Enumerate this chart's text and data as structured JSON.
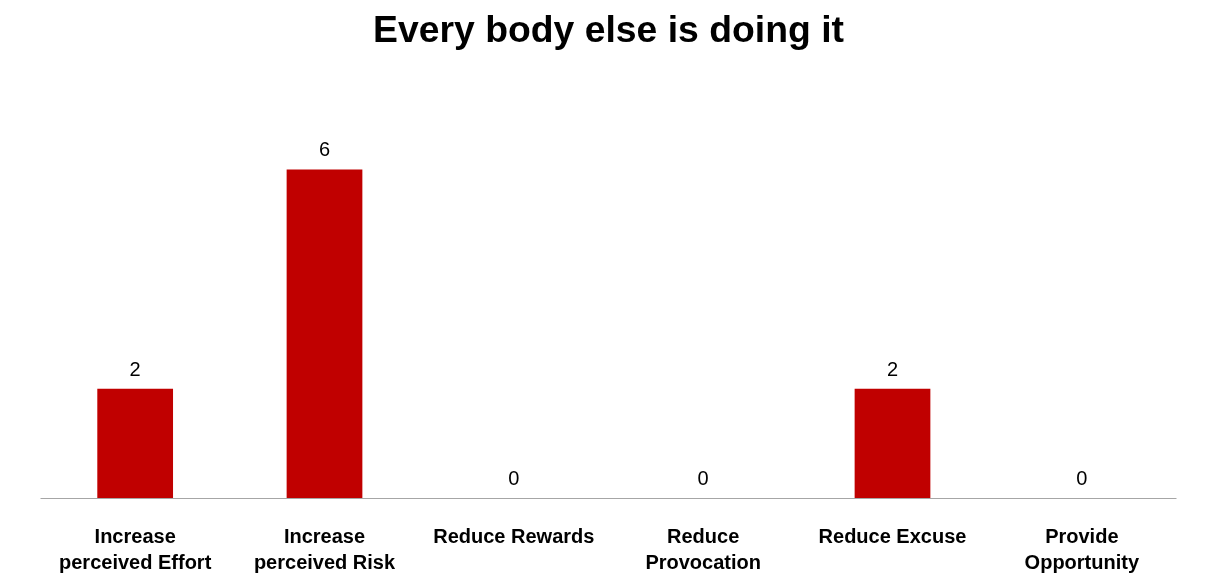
{
  "chart_data": {
    "type": "bar",
    "title": "Every body else is doing it",
    "categories": [
      "Increase perceived Effort",
      "Increase perceived Risk",
      "Reduce Rewards",
      "Reduce Provocation",
      "Reduce Excuse",
      "Provide Opportunity"
    ],
    "values": [
      2,
      6,
      0,
      0,
      2,
      0
    ],
    "color": "#c00000",
    "data_labels": true
  }
}
